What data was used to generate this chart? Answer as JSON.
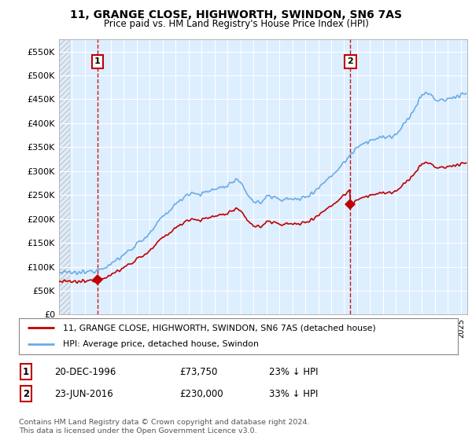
{
  "title": "11, GRANGE CLOSE, HIGHWORTH, SWINDON, SN6 7AS",
  "subtitle": "Price paid vs. HM Land Registry's House Price Index (HPI)",
  "yticks": [
    0,
    50000,
    100000,
    150000,
    200000,
    250000,
    300000,
    350000,
    400000,
    450000,
    500000,
    550000
  ],
  "ytick_labels": [
    "£0",
    "£50K",
    "£100K",
    "£150K",
    "£200K",
    "£250K",
    "£300K",
    "£350K",
    "£400K",
    "£450K",
    "£500K",
    "£550K"
  ],
  "ylim": [
    0,
    575000
  ],
  "xlim_min": 1994.0,
  "xlim_max": 2025.5,
  "sale1_date": 1996.97,
  "sale1_price": 73750,
  "sale1_label": "1",
  "sale2_date": 2016.48,
  "sale2_price": 230000,
  "sale2_label": "2",
  "hpi_color": "#6aace6",
  "price_color": "#c00000",
  "annotation_box_color": "#c00000",
  "vline_color": "#c00000",
  "legend_label_price": "11, GRANGE CLOSE, HIGHWORTH, SWINDON, SN6 7AS (detached house)",
  "legend_label_hpi": "HPI: Average price, detached house, Swindon",
  "footnote": "Contains HM Land Registry data © Crown copyright and database right 2024.\nThis data is licensed under the Open Government Licence v3.0.",
  "background_color": "#ffffff",
  "plot_bg_color": "#ddeeff",
  "grid_color": "#ffffff",
  "hatch_color": "#c8c8c8"
}
